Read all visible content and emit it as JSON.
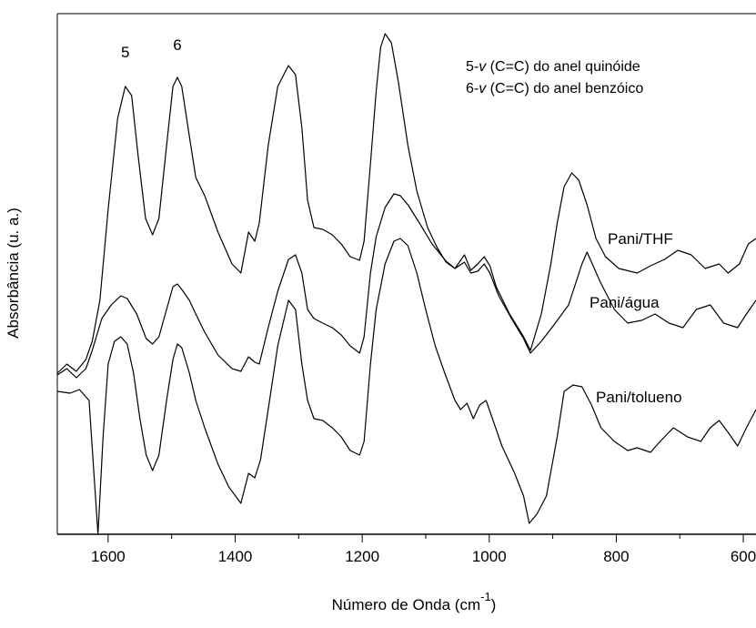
{
  "chart_data": {
    "type": "line",
    "xlabel": {
      "text": "Número de Onda (cm",
      "sup": "-1",
      "end": ")"
    },
    "ylabel": "Absorbância (u. a.)",
    "xlim": [
      1680,
      580
    ],
    "xticks": [
      1600,
      1400,
      1200,
      1000,
      800,
      600
    ],
    "xminorticks": [
      1500,
      1300,
      1100,
      900,
      700
    ],
    "ylim": [
      0,
      572
    ],
    "annotations": [
      {
        "text": "5",
        "x": 1573,
        "y": 512
      },
      {
        "text": "6",
        "x": 1491,
        "y": 520
      }
    ],
    "notes": [
      {
        "prefix": "5-",
        "symbol": "v",
        "text": " (C=C) do anel quinóide"
      },
      {
        "prefix": "6-",
        "symbol": "v",
        "text": " (C=C) do anel benzóico"
      }
    ],
    "series": [
      {
        "name": "Pani/THF",
        "color": "#000000",
        "x": [
          1680,
          1665,
          1650,
          1635,
          1625,
          1613,
          1600,
          1585,
          1573,
          1563,
          1553,
          1541,
          1530,
          1520,
          1508,
          1498,
          1491,
          1484,
          1472,
          1462,
          1448,
          1427,
          1405,
          1391,
          1379,
          1369,
          1362,
          1348,
          1333,
          1316,
          1305,
          1295,
          1286,
          1276,
          1262,
          1247,
          1233,
          1219,
          1204,
          1197,
          1187,
          1178,
          1171,
          1164,
          1154,
          1143,
          1128,
          1114,
          1097,
          1082,
          1068,
          1054,
          1039,
          1029,
          1018,
          1008,
          999,
          989,
          968,
          946,
          935,
          918,
          903,
          893,
          882,
          870,
          859,
          846,
          832,
          817,
          796,
          767,
          746,
          724,
          703,
          682,
          660,
          638,
          624,
          606,
          592,
          580
        ],
        "values": [
          177,
          187,
          179,
          192,
          212,
          257,
          357,
          457,
          492,
          482,
          417,
          347,
          329,
          347,
          427,
          492,
          502,
          492,
          437,
          392,
          372,
          332,
          297,
          287,
          332,
          322,
          342,
          427,
          492,
          515,
          505,
          447,
          367,
          337,
          335,
          329,
          319,
          305,
          301,
          322,
          407,
          487,
          535,
          550,
          540,
          497,
          427,
          377,
          337,
          315,
          299,
          292,
          307,
          290,
          297,
          305,
          295,
          272,
          242,
          217,
          202,
          242,
          297,
          342,
          382,
          397,
          389,
          362,
          325,
          305,
          292,
          287,
          295,
          302,
          312,
          307,
          292,
          297,
          287,
          297,
          319,
          325
        ]
      },
      {
        "name": "Pani/água",
        "color": "#000000",
        "x": [
          1680,
          1665,
          1650,
          1635,
          1625,
          1610,
          1595,
          1580,
          1570,
          1555,
          1540,
          1530,
          1520,
          1508,
          1498,
          1491,
          1484,
          1472,
          1462,
          1448,
          1427,
          1405,
          1391,
          1379,
          1369,
          1362,
          1348,
          1333,
          1316,
          1305,
          1295,
          1286,
          1276,
          1262,
          1247,
          1233,
          1219,
          1204,
          1197,
          1187,
          1178,
          1164,
          1150,
          1140,
          1128,
          1110,
          1090,
          1068,
          1054,
          1039,
          1029,
          1018,
          1008,
          999,
          985,
          965,
          946,
          935,
          918,
          896,
          875,
          854,
          846,
          825,
          803,
          782,
          760,
          739,
          717,
          695,
          674,
          652,
          631,
          609,
          595,
          580
        ],
        "values": [
          175,
          182,
          172,
          182,
          202,
          237,
          252,
          262,
          259,
          242,
          215,
          209,
          217,
          247,
          272,
          275,
          269,
          257,
          242,
          222,
          197,
          182,
          179,
          195,
          189,
          187,
          227,
          267,
          302,
          307,
          287,
          247,
          237,
          232,
          227,
          219,
          207,
          199,
          217,
          287,
          327,
          359,
          374,
          372,
          362,
          342,
          319,
          300,
          292,
          299,
          287,
          289,
          297,
          287,
          262,
          237,
          215,
          199,
          212,
          232,
          252,
          297,
          310,
          277,
          247,
          232,
          235,
          242,
          232,
          227,
          247,
          252,
          232,
          227,
          242,
          257
        ]
      },
      {
        "name": "Pani/tolueno",
        "color": "#000000",
        "x": [
          1680,
          1660,
          1645,
          1630,
          1616,
          1608,
          1600,
          1590,
          1580,
          1570,
          1560,
          1550,
          1540,
          1530,
          1520,
          1508,
          1498,
          1491,
          1484,
          1472,
          1462,
          1448,
          1427,
          1410,
          1391,
          1379,
          1369,
          1360,
          1348,
          1333,
          1316,
          1305,
          1295,
          1286,
          1276,
          1262,
          1247,
          1233,
          1219,
          1204,
          1197,
          1187,
          1178,
          1164,
          1150,
          1140,
          1128,
          1114,
          1100,
          1085,
          1070,
          1054,
          1045,
          1035,
          1025,
          1015,
          1005,
          995,
          980,
          960,
          946,
          937,
          925,
          910,
          893,
          882,
          868,
          854,
          839,
          824,
          803,
          782,
          767,
          746,
          731,
          710,
          688,
          667,
          652,
          638,
          624,
          609,
          595,
          580
        ],
        "values": [
          157,
          155,
          159,
          147,
          0,
          107,
          187,
          212,
          217,
          209,
          177,
          127,
          87,
          70,
          87,
          147,
          192,
          209,
          205,
          177,
          147,
          117,
          77,
          52,
          34,
          67,
          62,
          82,
          137,
          207,
          257,
          247,
          187,
          147,
          127,
          125,
          117,
          107,
          92,
          87,
          102,
          187,
          247,
          297,
          322,
          325,
          317,
          287,
          247,
          207,
          177,
          147,
          137,
          144,
          127,
          142,
          147,
          127,
          97,
          67,
          42,
          12,
          22,
          42,
          107,
          157,
          164,
          162,
          142,
          117,
          102,
          92,
          95,
          90,
          102,
          117,
          107,
          102,
          117,
          125,
          112,
          97,
          117,
          137
        ]
      }
    ]
  }
}
